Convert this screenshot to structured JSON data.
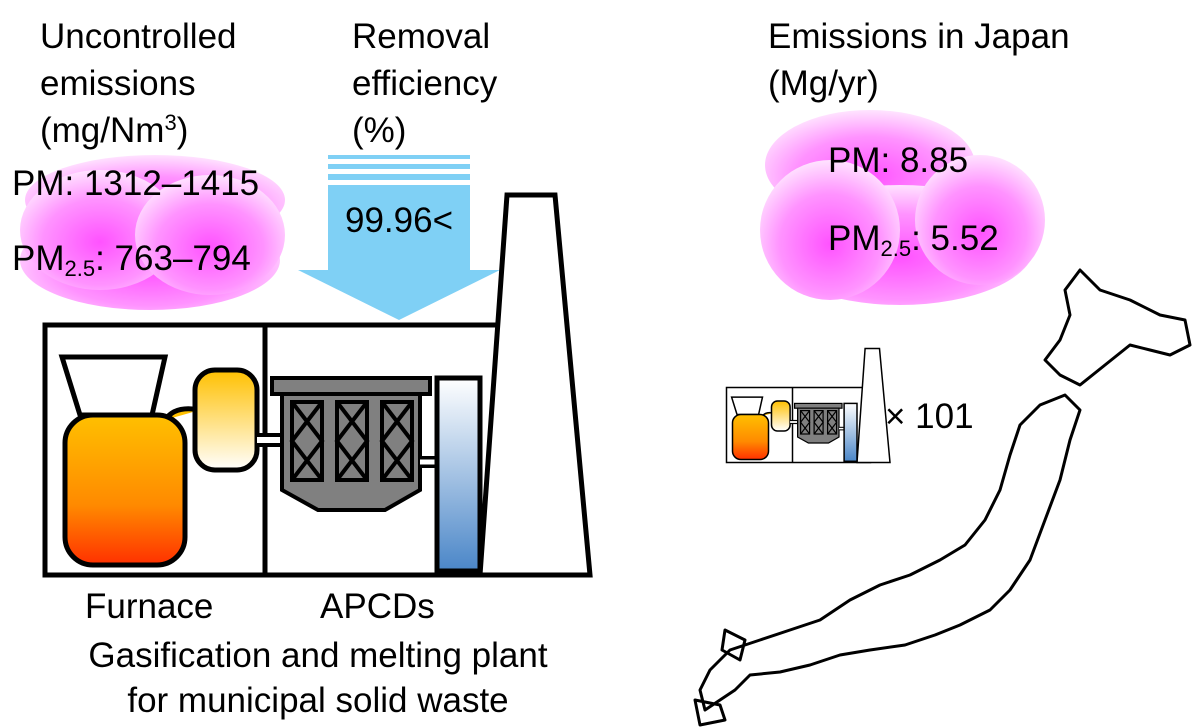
{
  "left": {
    "emissions_label": {
      "line1": "Uncontrolled",
      "line2": "emissions",
      "line3_main": "(mg/Nm",
      "line3_sup": "3",
      "line3_end": ")"
    },
    "pm": "PM: 1312–1415",
    "pm25": {
      "main": "PM",
      "sub": "2.5",
      "rest": ": 763–794"
    }
  },
  "removal": {
    "line1": "Removal",
    "line2": "efficiency",
    "line3": "(%)",
    "value": "99.96<"
  },
  "plant": {
    "furnace": "Furnace",
    "apcds": "APCDs",
    "caption_line1": "Gasification and melting plant",
    "caption_line2": "for municipal solid waste"
  },
  "japan": {
    "title_line1": "Emissions in Japan",
    "title_line2": "(Mg/yr)",
    "pm": "PM: 8.85",
    "pm25": {
      "main": "PM",
      "sub": "2.5",
      "rest": ": 5.52"
    },
    "count": "× 101"
  }
}
